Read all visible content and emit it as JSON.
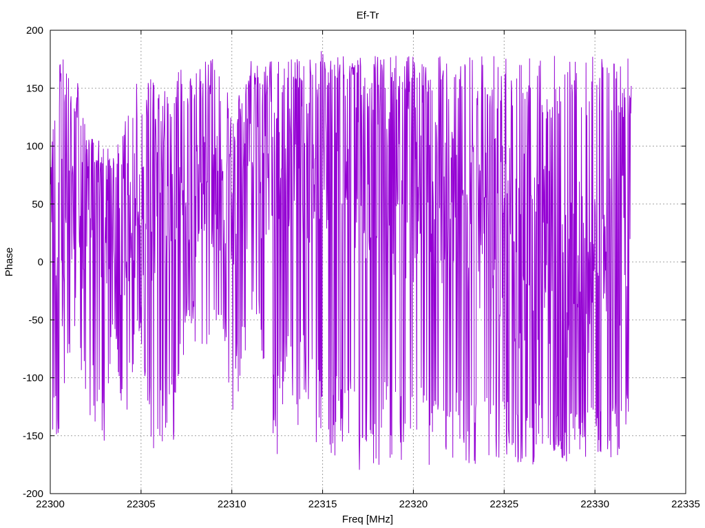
{
  "chart_data": {
    "type": "line",
    "title": "Ef-Tr",
    "xlabel": "Freq [MHz]",
    "ylabel": "Phase",
    "xlim": [
      22300,
      22335
    ],
    "ylim": [
      -200,
      200
    ],
    "xticks": [
      22300,
      22305,
      22310,
      22315,
      22320,
      22325,
      22330,
      22335
    ],
    "yticks": [
      -200,
      -150,
      -100,
      -50,
      0,
      50,
      100,
      150,
      200
    ],
    "grid": true,
    "line_color": "#9400d3",
    "series": [
      {
        "x": [
          22300.0,
          22300.5,
          22301.0,
          22301.5,
          22302.0,
          22302.5,
          22303.0,
          22303.5,
          22304.0,
          22304.5,
          22305.0,
          22305.5,
          22306.0,
          22306.5,
          22307.0,
          22307.5,
          22308.0,
          22308.5,
          22309.0,
          22309.5,
          22310.0,
          22310.5,
          22311.0,
          22311.5,
          22312.0,
          22312.5,
          22313.0,
          22313.5,
          22314.0,
          22314.5,
          22315.0,
          22315.5,
          22316.0,
          22316.5,
          22317.0,
          22317.5,
          22318.0,
          22318.5,
          22319.0,
          22319.5,
          22320.0,
          22320.5,
          22321.0,
          22321.5,
          22322.0,
          22322.5,
          22323.0,
          22323.5,
          22324.0,
          22324.5,
          22325.0,
          22325.5,
          22326.0,
          22326.5,
          22327.0,
          22327.5,
          22328.0,
          22328.5,
          22329.0,
          22329.5,
          22330.0,
          22330.5,
          22331.0,
          22331.5,
          22332.0
        ],
        "y": [
          -20,
          10,
          40,
          30,
          45,
          30,
          40,
          30,
          25,
          35,
          40,
          45,
          50,
          45,
          55,
          60,
          60,
          55,
          65,
          60,
          55,
          60,
          70,
          85,
          90,
          85,
          95,
          90,
          95,
          90,
          100,
          95,
          100,
          95,
          100,
          90,
          85,
          80,
          75,
          70,
          65,
          60,
          55,
          50,
          45,
          40,
          40,
          35,
          30,
          25,
          20,
          15,
          10,
          5,
          0,
          -5,
          -10,
          -10,
          -15,
          -15,
          -10,
          -5,
          0,
          -5,
          0
        ],
        "envelope_low": [
          -150,
          -160,
          -100,
          -90,
          -130,
          -140,
          -170,
          -60,
          -160,
          -100,
          -70,
          -160,
          -165,
          -160,
          -150,
          -50,
          -70,
          -80,
          -60,
          -60,
          -150,
          -100,
          -60,
          -60,
          -170,
          -170,
          -100,
          -150,
          -120,
          -150,
          -180,
          -170,
          -170,
          -175,
          -180,
          -180,
          -175,
          -180,
          -175,
          -180,
          -180,
          -175,
          -180,
          -180,
          -175,
          -175,
          -180,
          -175,
          -180,
          -180,
          -175,
          -175,
          -175,
          -175,
          -175,
          -175,
          -175,
          -175,
          -175,
          -175,
          -170,
          -165,
          -170,
          -165,
          -120
        ],
        "envelope_high": [
          100,
          175,
          175,
          160,
          120,
          110,
          100,
          100,
          110,
          160,
          150,
          160,
          145,
          150,
          170,
          165,
          170,
          175,
          175,
          165,
          130,
          150,
          175,
          175,
          175,
          175,
          175,
          175,
          175,
          175,
          175,
          175,
          178,
          178,
          178,
          178,
          178,
          178,
          178,
          178,
          178,
          178,
          178,
          178,
          178,
          178,
          178,
          178,
          178,
          178,
          178,
          178,
          178,
          178,
          178,
          178,
          178,
          178,
          178,
          178,
          178,
          178,
          178,
          178,
          178
        ]
      }
    ]
  }
}
